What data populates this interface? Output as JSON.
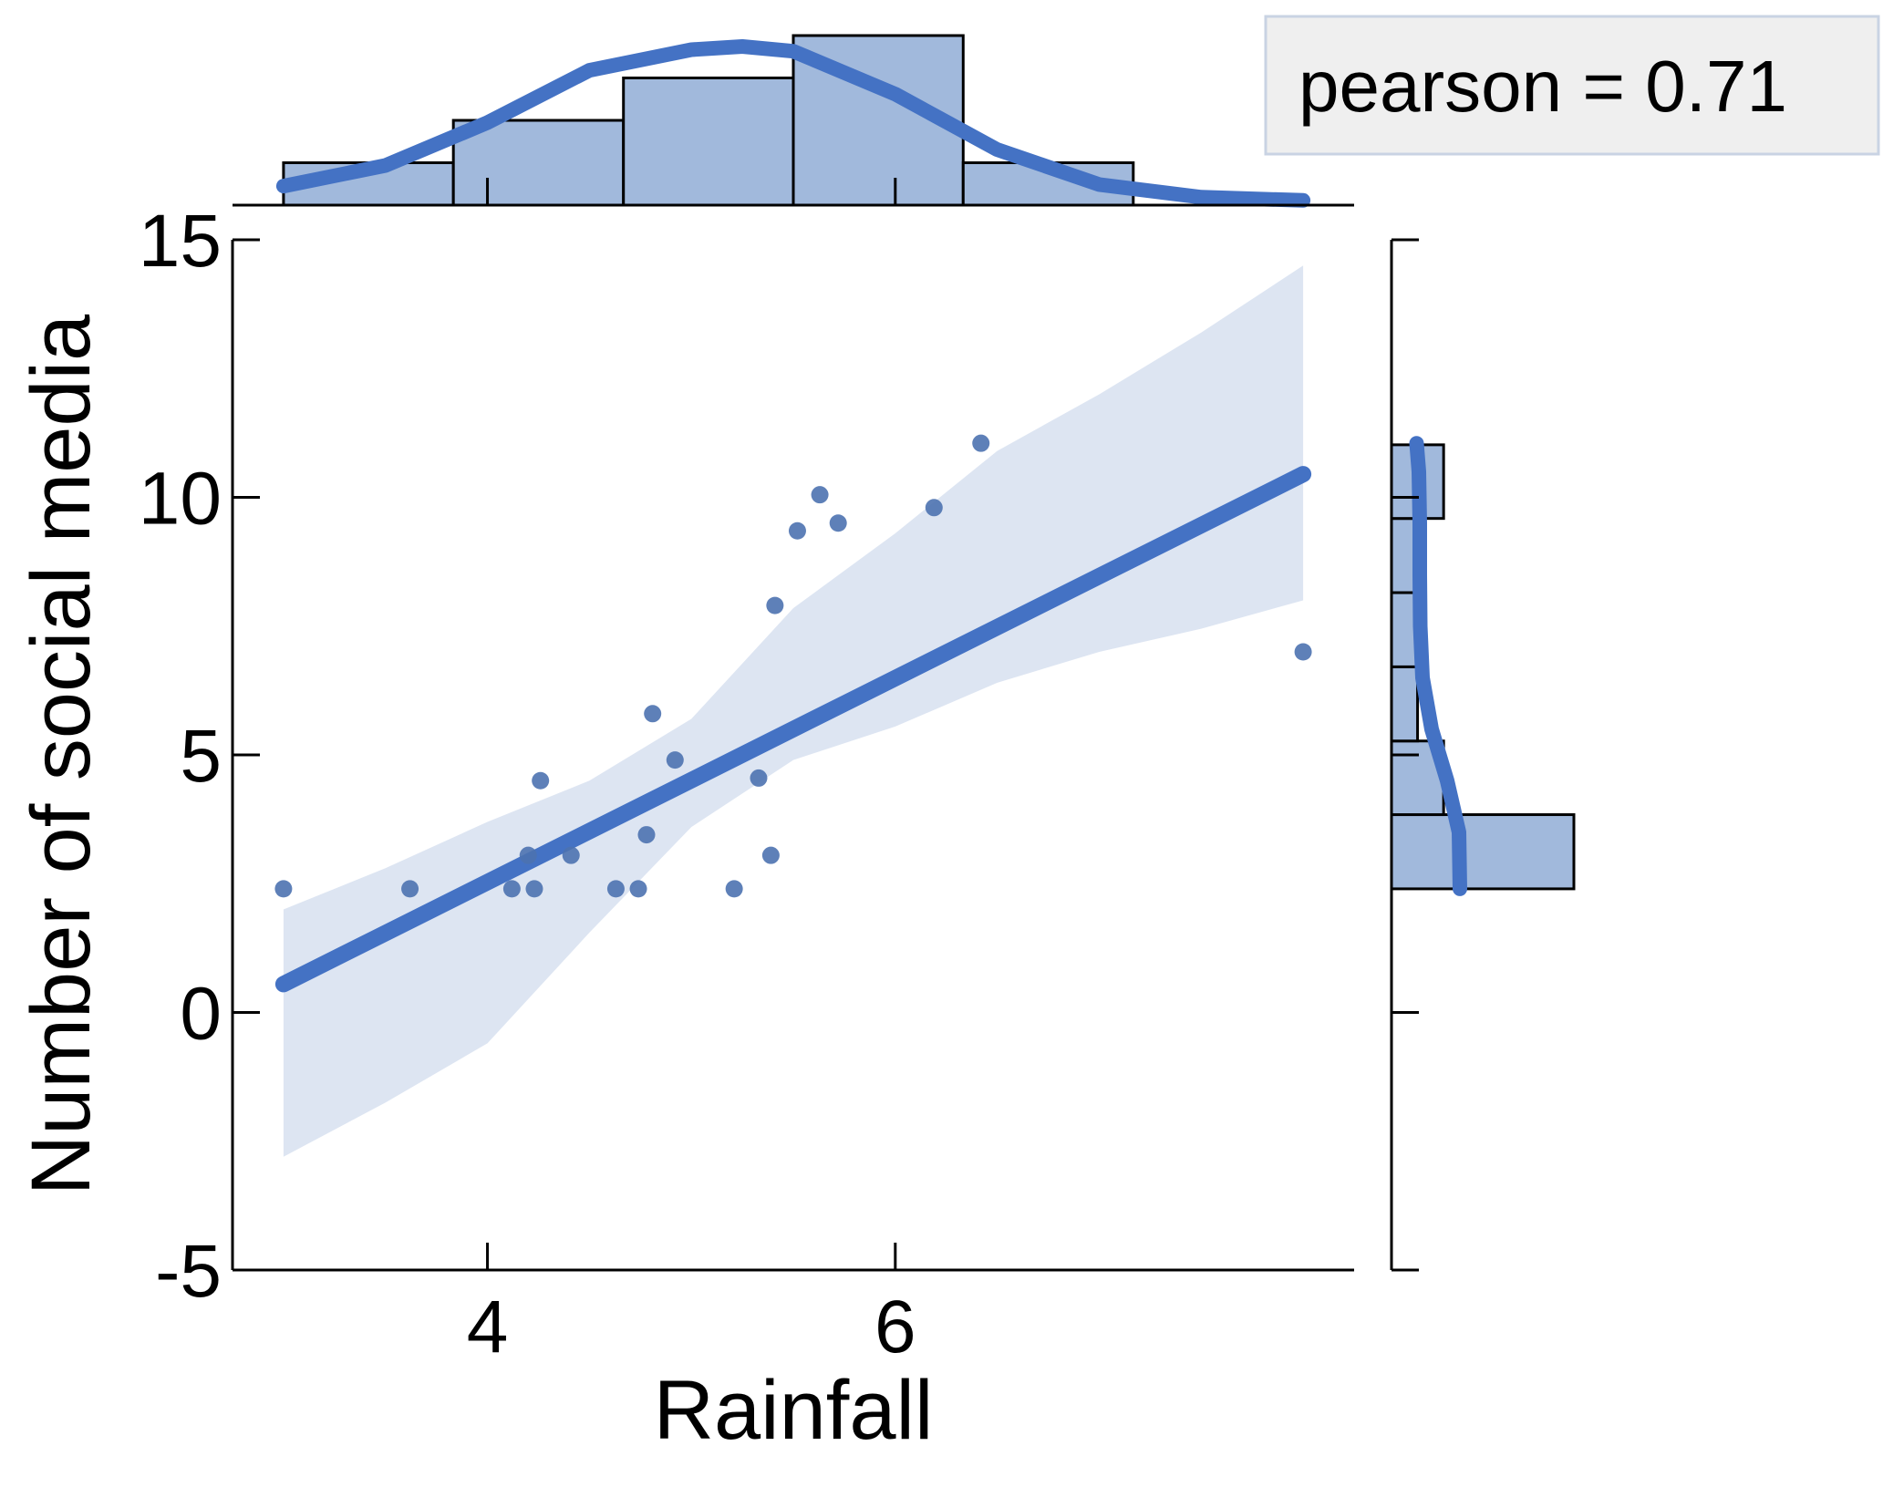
{
  "chart_data": {
    "type": "scatter",
    "subtype": "jointplot-regression",
    "xlabel": "Rainfall",
    "ylabel": "Number of social media",
    "xlim": [
      2.75,
      8.25
    ],
    "ylim": [
      -5,
      15
    ],
    "x_ticks": [
      4,
      6
    ],
    "y_ticks": [
      -5,
      0,
      5,
      10,
      15
    ],
    "y_tick_labels": [
      "-5",
      "0",
      "5",
      "10",
      "15"
    ],
    "grid": false,
    "colors": {
      "points": "#4c72b0",
      "regression_line": "#4472c4",
      "confidence_band": "#dde5f2",
      "histogram": "#a1b9dc",
      "annotation_box": "#efefef",
      "annotation_border": "#c9d3e3"
    },
    "annotation": {
      "text": "pearson = 0.71",
      "placement": "top-right"
    },
    "points": [
      {
        "x": 3.0,
        "y": 2.4
      },
      {
        "x": 3.62,
        "y": 2.4
      },
      {
        "x": 4.12,
        "y": 2.4
      },
      {
        "x": 4.2,
        "y": 3.05
      },
      {
        "x": 4.23,
        "y": 2.4
      },
      {
        "x": 4.26,
        "y": 4.5
      },
      {
        "x": 4.41,
        "y": 3.05
      },
      {
        "x": 4.63,
        "y": 2.4
      },
      {
        "x": 4.74,
        "y": 2.4
      },
      {
        "x": 4.78,
        "y": 3.45
      },
      {
        "x": 4.81,
        "y": 5.8
      },
      {
        "x": 4.92,
        "y": 4.9
      },
      {
        "x": 5.21,
        "y": 2.4
      },
      {
        "x": 5.33,
        "y": 4.55
      },
      {
        "x": 5.39,
        "y": 3.05
      },
      {
        "x": 5.41,
        "y": 7.9
      },
      {
        "x": 5.52,
        "y": 9.35
      },
      {
        "x": 5.63,
        "y": 10.05
      },
      {
        "x": 5.72,
        "y": 9.5
      },
      {
        "x": 6.19,
        "y": 9.8
      },
      {
        "x": 6.42,
        "y": 11.05
      },
      {
        "x": 8.0,
        "y": 7.0
      }
    ],
    "regression": {
      "x_start": 3.0,
      "y_start": 0.55,
      "x_end": 8.0,
      "y_end": 10.45
    },
    "confidence_band": {
      "x": [
        3.0,
        3.5,
        4.0,
        4.5,
        5.0,
        5.5,
        6.0,
        6.5,
        7.0,
        7.5,
        8.0
      ],
      "lower": [
        -2.8,
        -1.75,
        -0.6,
        1.55,
        3.6,
        4.9,
        5.55,
        6.4,
        7.0,
        7.45,
        8.0
      ],
      "upper": [
        2.0,
        2.8,
        3.7,
        4.5,
        5.7,
        7.85,
        9.3,
        10.9,
        12.0,
        13.2,
        14.5
      ]
    },
    "x_histogram": {
      "bin_edges": [
        3.0,
        3.833,
        4.667,
        5.5,
        6.333,
        7.167,
        8.0
      ],
      "counts": [
        1,
        2,
        3,
        4,
        1,
        0
      ]
    },
    "y_histogram": {
      "bin_edges": [
        2.4,
        3.84,
        5.27,
        6.71,
        8.15,
        9.59,
        11.02
      ],
      "counts": [
        7,
        2,
        1,
        1,
        1,
        2
      ]
    },
    "x_kde": {
      "x": [
        3.0,
        3.5,
        4.0,
        4.5,
        5.0,
        5.25,
        5.5,
        6.0,
        6.5,
        7.0,
        7.5,
        8.0
      ],
      "density": [
        0.12,
        0.25,
        0.52,
        0.85,
        0.98,
        1.0,
        0.97,
        0.7,
        0.35,
        0.13,
        0.05,
        0.03
      ]
    },
    "y_kde": {
      "y": [
        2.4,
        3.5,
        4.5,
        5.5,
        6.5,
        7.5,
        8.5,
        9.5,
        10.5,
        11.05
      ],
      "density": [
        1.0,
        0.98,
        0.72,
        0.38,
        0.18,
        0.13,
        0.12,
        0.12,
        0.1,
        0.05
      ]
    }
  }
}
